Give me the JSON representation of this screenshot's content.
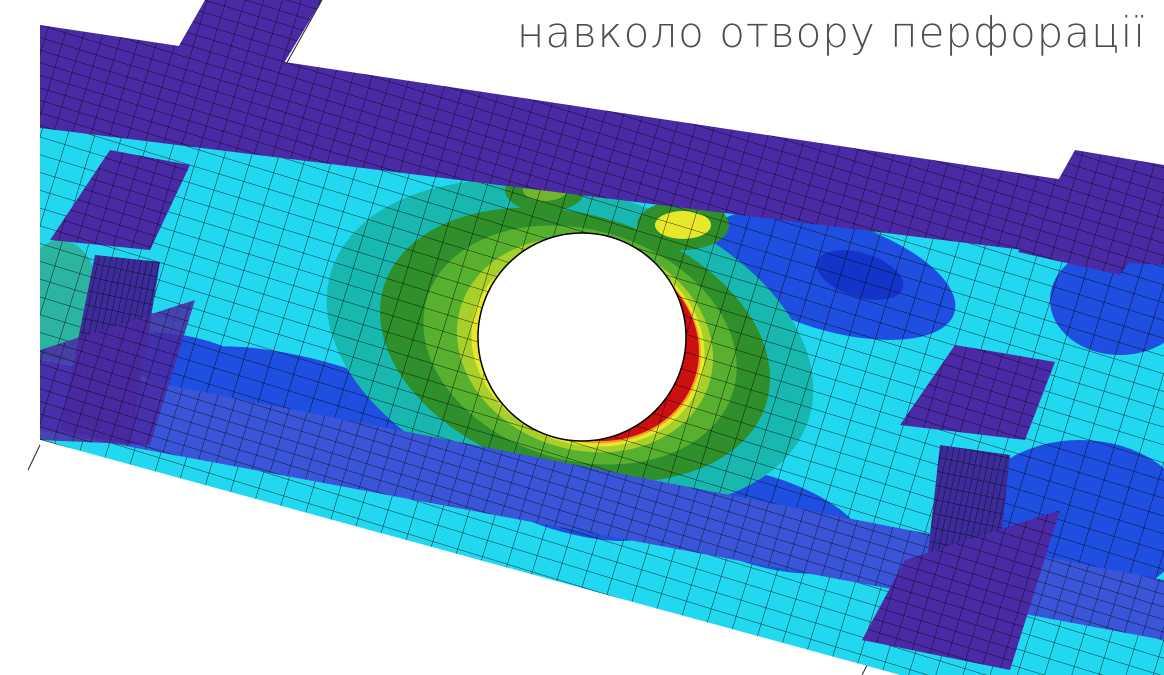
{
  "caption": "навколо отвору перфорації",
  "colors": {
    "background": "#ffffff",
    "caption_text": "#4d4d4d",
    "stiffener_purple": "#4b2aa5",
    "low_stress_blue": "#1f4fe0",
    "mid_stress_cyan": "#22d8f0",
    "high_stress_green": "#3aa02c",
    "higher_stress_yellow": "#e8e82a",
    "max_stress_red": "#cc0f0f",
    "mesh_lines": "#000000",
    "hole_fill": "#ffffff"
  }
}
